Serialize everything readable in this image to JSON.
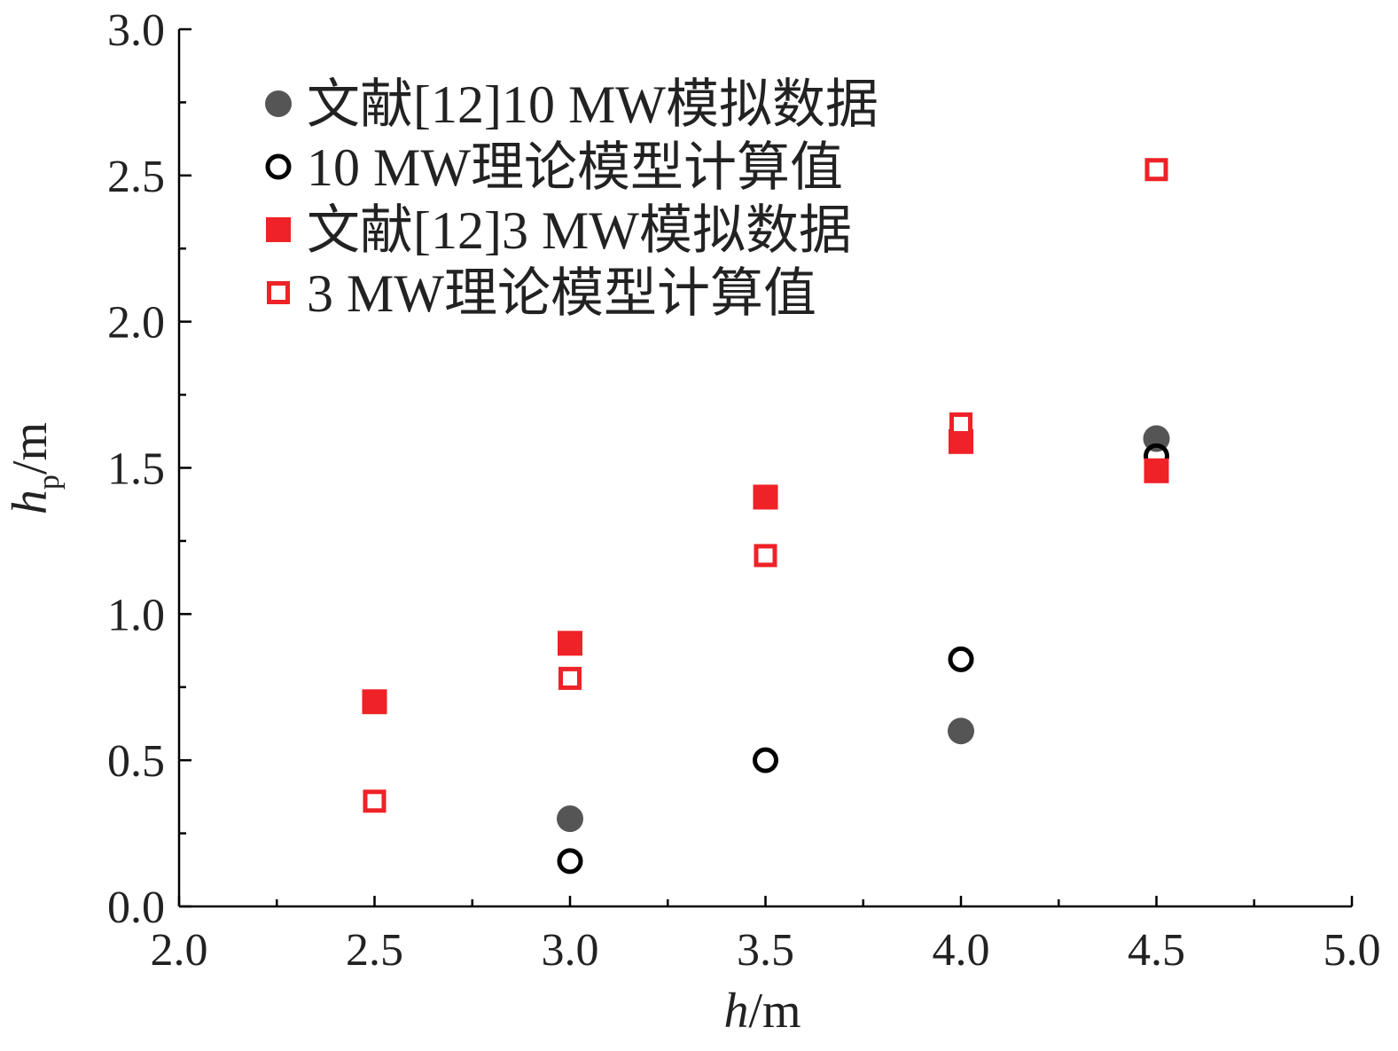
{
  "chart_data": {
    "type": "scatter",
    "title": "",
    "xlabel": {
      "var": "h",
      "unit": "/m"
    },
    "ylabel": {
      "var": "h",
      "sub": "p",
      "unit": "/m"
    },
    "xlim": [
      2.0,
      5.0
    ],
    "ylim": [
      0.0,
      3.0
    ],
    "xticks": [
      "2.0",
      "2.5",
      "3.0",
      "3.5",
      "4.0",
      "4.5",
      "5.0"
    ],
    "yticks": [
      "0.0",
      "0.5",
      "1.0",
      "1.5",
      "2.0",
      "2.5",
      "3.0"
    ],
    "grid": false,
    "legend_position": "top-left",
    "series": [
      {
        "name": "文献[12]10 MW模拟数据",
        "marker": "filled-circle",
        "color": "#555555",
        "points": [
          [
            3.0,
            0.3
          ],
          [
            4.0,
            0.6
          ],
          [
            4.5,
            1.6
          ]
        ]
      },
      {
        "name": "10 MW理论模型计算值",
        "marker": "open-circle",
        "color": "#000000",
        "points": [
          [
            3.0,
            0.155
          ],
          [
            3.5,
            0.5
          ],
          [
            4.0,
            0.845
          ],
          [
            4.5,
            1.54
          ]
        ]
      },
      {
        "name": "文献[12]3 MW模拟数据",
        "marker": "filled-square",
        "color": "#ee2227",
        "points": [
          [
            2.5,
            0.7
          ],
          [
            3.0,
            0.9
          ],
          [
            3.5,
            1.4
          ],
          [
            4.0,
            1.59
          ],
          [
            4.5,
            1.49
          ]
        ]
      },
      {
        "name": "3 MW理论模型计算值",
        "marker": "open-square",
        "color": "#ee2227",
        "points": [
          [
            2.5,
            0.36
          ],
          [
            3.0,
            0.78
          ],
          [
            3.5,
            1.2
          ],
          [
            4.0,
            1.65
          ],
          [
            4.5,
            2.52
          ]
        ]
      }
    ]
  }
}
